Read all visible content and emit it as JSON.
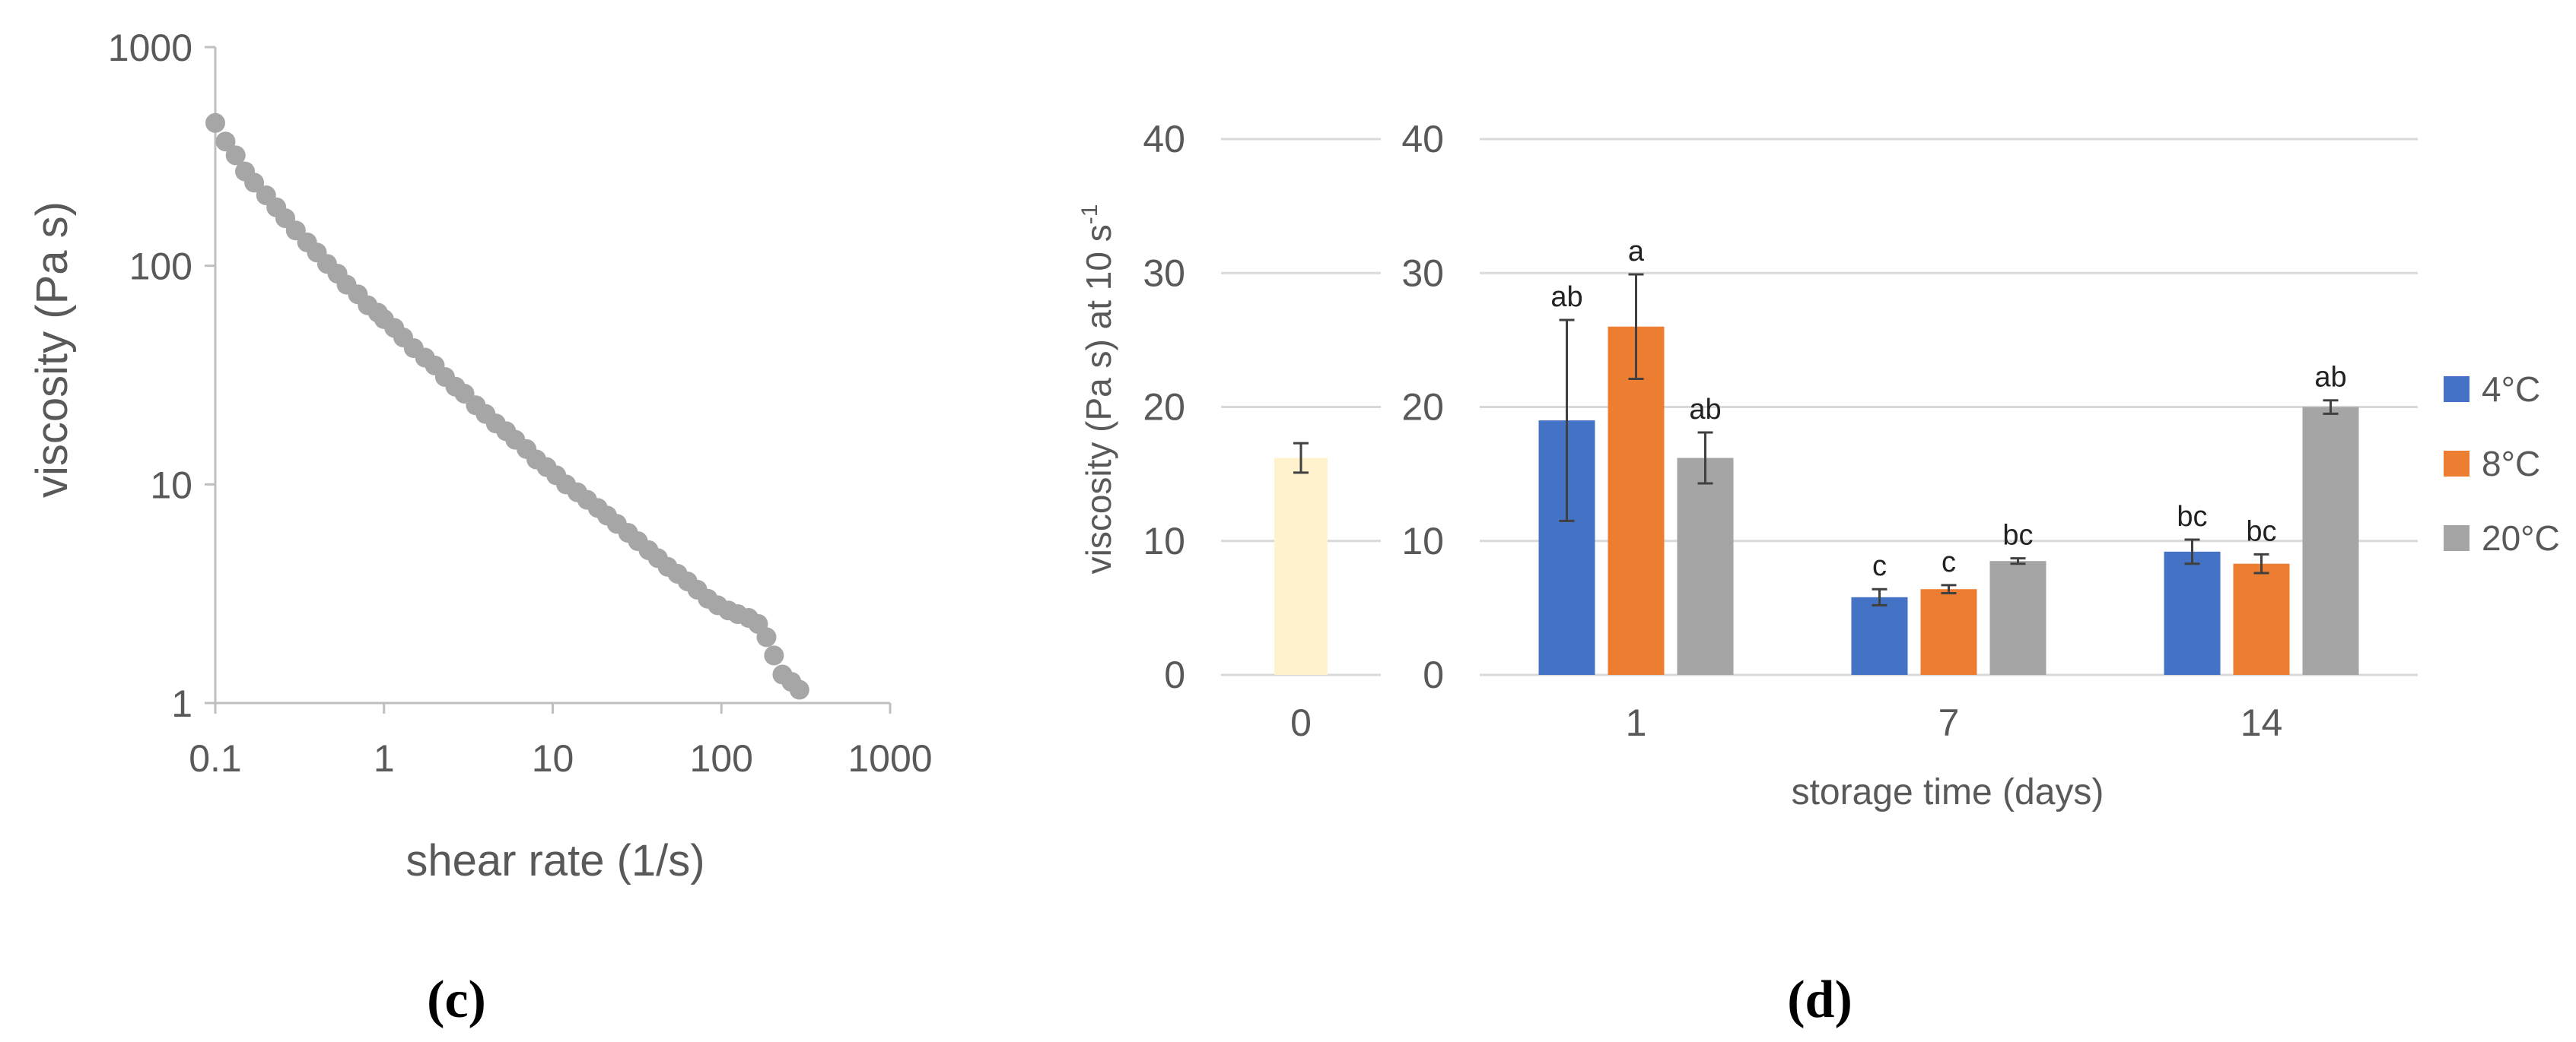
{
  "chart_data": [
    {
      "type": "scatter",
      "panel_label": "(c)",
      "xlabel": "shear rate (1/s)",
      "ylabel": "viscosity (Pa s)",
      "xscale": "log",
      "yscale": "log",
      "xlim": [
        0.1,
        1000
      ],
      "ylim": [
        1,
        1000
      ],
      "x_ticks": [
        "0.1",
        "1",
        "10",
        "100",
        "1000"
      ],
      "y_ticks": [
        "1",
        "10",
        "100",
        "1000"
      ],
      "marker_color": "#a6a6a6",
      "series": [
        {
          "name": "viscosity",
          "x": [
            0.1,
            0.115,
            0.132,
            0.15,
            0.17,
            0.2,
            0.23,
            0.26,
            0.3,
            0.35,
            0.4,
            0.46,
            0.53,
            0.6,
            0.7,
            0.8,
            0.92,
            1.0,
            1.15,
            1.3,
            1.5,
            1.75,
            2.0,
            2.3,
            2.65,
            3.0,
            3.5,
            4.0,
            4.6,
            5.3,
            6.0,
            7.0,
            8.0,
            9.2,
            10.5,
            12.0,
            14.0,
            16.0,
            18.5,
            21.0,
            24.0,
            28.0,
            32.0,
            37.0,
            42.0,
            48.0,
            55.0,
            63.0,
            72.0,
            83.0,
            95.0,
            110.0,
            125.0,
            145.0,
            165.0,
            185.0,
            205.0,
            230.0,
            260.0,
            290.0
          ],
          "y": [
            450,
            370,
            320,
            270,
            240,
            210,
            185,
            165,
            145,
            128,
            115,
            102,
            92,
            82,
            74,
            66,
            61,
            57,
            52,
            47,
            42,
            38,
            35,
            31,
            28,
            26,
            23,
            21,
            19,
            17.5,
            16,
            14.5,
            13,
            12,
            11,
            10,
            9.2,
            8.5,
            7.8,
            7.2,
            6.6,
            6.0,
            5.5,
            5.0,
            4.6,
            4.2,
            3.9,
            3.6,
            3.3,
            3.0,
            2.8,
            2.65,
            2.55,
            2.45,
            2.3,
            2.0,
            1.65,
            1.35,
            1.25,
            1.15
          ]
        }
      ]
    },
    {
      "type": "bar",
      "panel_label": "(d)",
      "ylabel_main": "viscosity (Pa s) at 10 s",
      "ylabel_sup": "-1",
      "xlabel": "storage time (days)",
      "ylim": [
        0,
        40
      ],
      "y_ticks": [
        "0",
        "10",
        "20",
        "30",
        "40"
      ],
      "baseline": {
        "category": "0",
        "value": 16.2,
        "error": 1.1,
        "color": "#fff2cc"
      },
      "categories": [
        "1",
        "7",
        "14"
      ],
      "series": [
        {
          "name": "4°C",
          "color": "#4472c4",
          "values": [
            19.0,
            5.8,
            9.2
          ],
          "errors": [
            7.5,
            0.6,
            0.9
          ],
          "letters": [
            "ab",
            "c",
            "bc"
          ]
        },
        {
          "name": "8°C",
          "color": "#ed7d31",
          "values": [
            26.0,
            6.4,
            8.3
          ],
          "errors": [
            3.9,
            0.3,
            0.7
          ],
          "letters": [
            "a",
            "c",
            "bc"
          ]
        },
        {
          "name": "20°C",
          "color": "#a5a5a5",
          "values": [
            16.2,
            8.5,
            20.0
          ],
          "errors": [
            1.9,
            0.2,
            0.5
          ],
          "letters": [
            "ab",
            "bc",
            "ab"
          ]
        }
      ]
    }
  ]
}
